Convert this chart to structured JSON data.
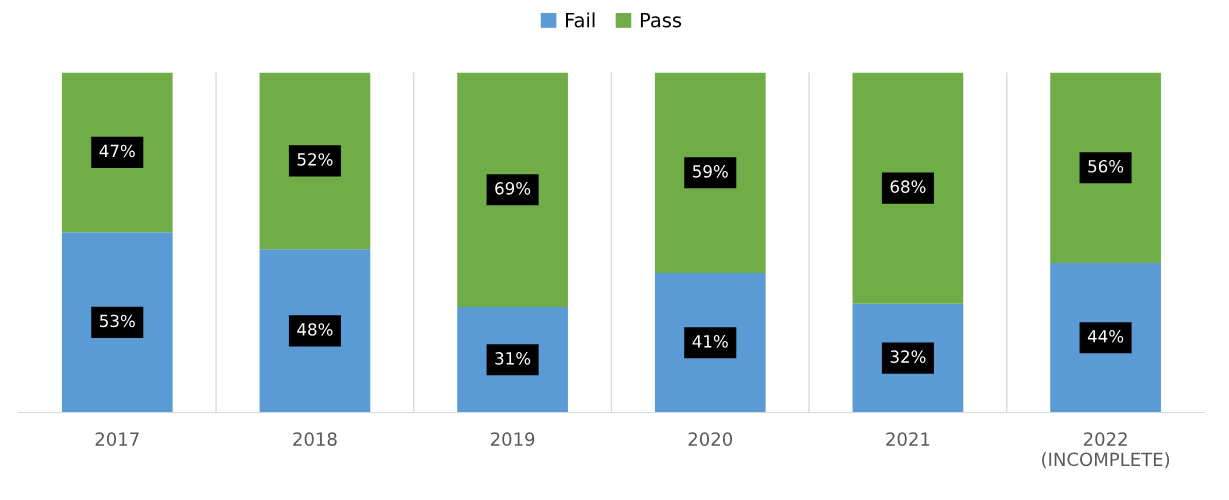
{
  "chart_data": {
    "type": "bar",
    "stacked": true,
    "categories": [
      "2017",
      "2018",
      "2019",
      "2020",
      "2021",
      "2022\n(INCOMPLETE)"
    ],
    "series": [
      {
        "name": "Fail",
        "color": "#5b9bd5",
        "values": [
          53,
          48,
          31,
          41,
          32,
          44
        ],
        "value_labels": [
          "53%",
          "48%",
          "31%",
          "41%",
          "32%",
          "44%"
        ]
      },
      {
        "name": "Pass",
        "color": "#70ad47",
        "values": [
          47,
          52,
          69,
          59,
          68,
          56
        ],
        "value_labels": [
          "47%",
          "52%",
          "69%",
          "59%",
          "68%",
          "56%"
        ]
      }
    ],
    "ylim": [
      0,
      100
    ],
    "tick_labels": "x",
    "grid": "x",
    "legend": "top"
  }
}
